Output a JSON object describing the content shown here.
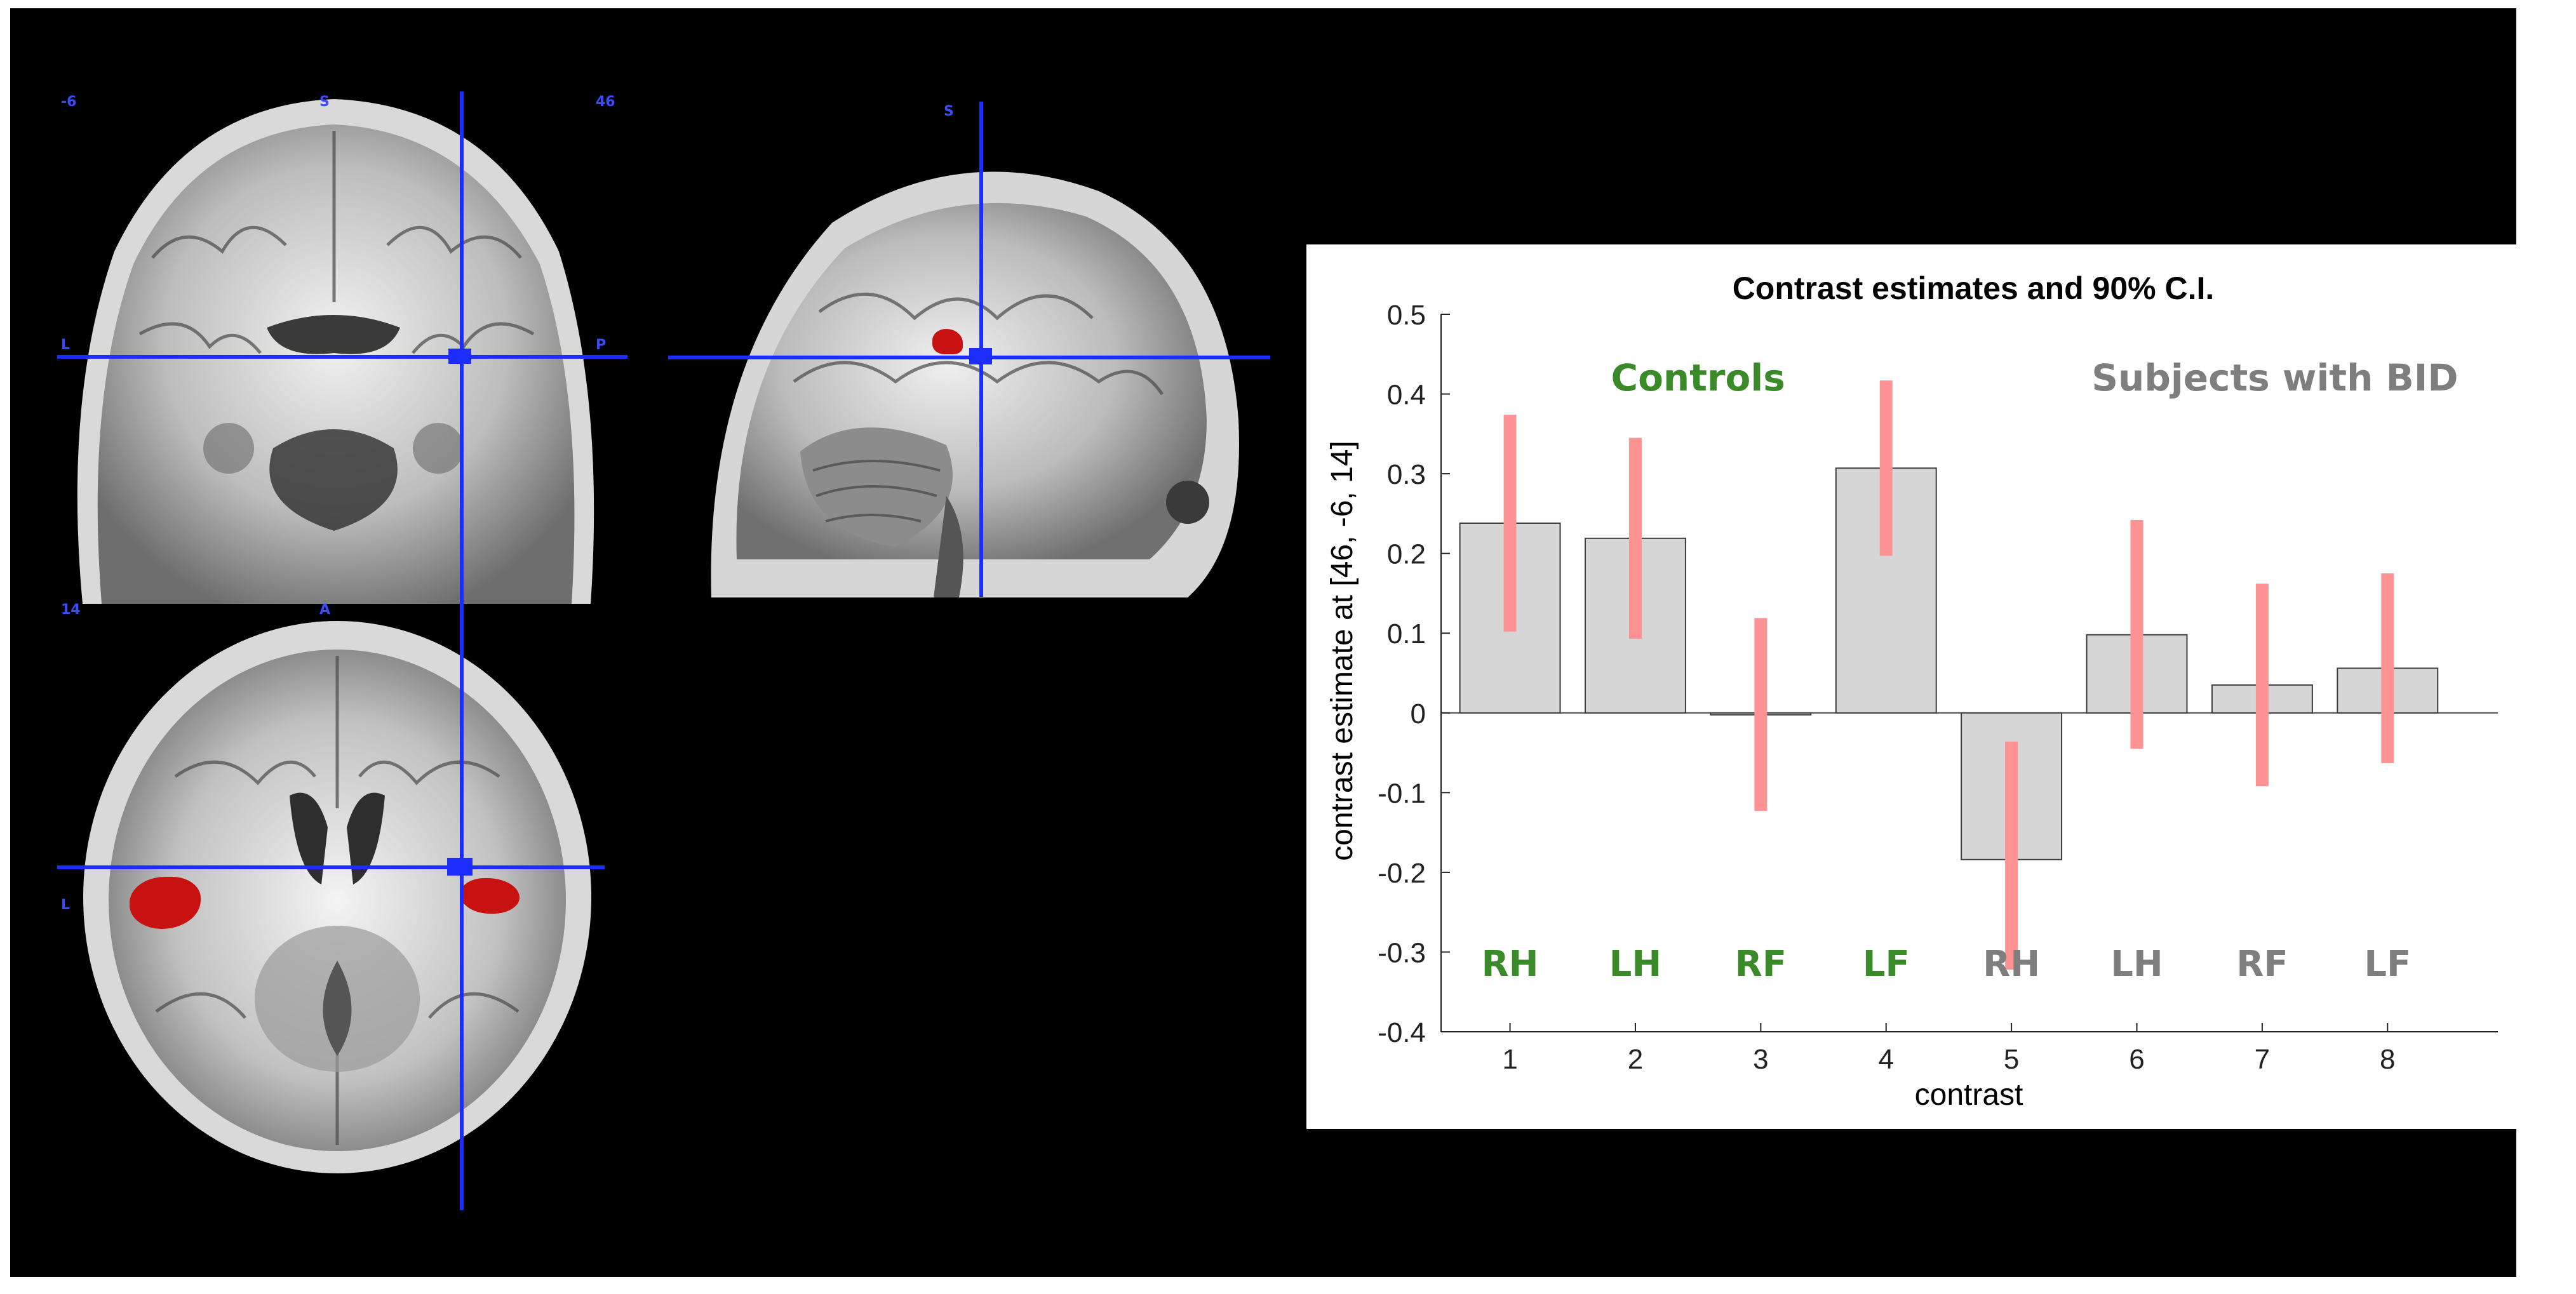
{
  "ortho_labels": {
    "coronal_left_num": "-6",
    "coronal_top": "S",
    "coronal_right_num": "46",
    "coronal_L": "L",
    "coronal_P": "P",
    "sagittal_top": "S",
    "axial_left_num": "14",
    "axial_top": "A",
    "axial_L": "L"
  },
  "colors": {
    "crosshair": "#1d2cff",
    "activation": "#c81212",
    "bar_fill": "#d6d6d6",
    "bar_stroke": "#3c3c3c",
    "ci": "#ff9393",
    "controls": "#3a8a2a",
    "bid": "#7e7e7e"
  },
  "chart_data": {
    "type": "bar",
    "title": "Contrast estimates and 90% C.I.",
    "xlabel": "contrast",
    "ylabel": "contrast estimate at [46, -6, 14]",
    "ylim": [
      -0.4,
      0.5
    ],
    "yticks": [
      "-0.4",
      "-0.3",
      "-0.2",
      "-0.1",
      "0",
      "0.1",
      "0.2",
      "0.3",
      "0.4",
      "0.5"
    ],
    "categories": [
      "1",
      "2",
      "3",
      "4",
      "5",
      "6",
      "7",
      "8"
    ],
    "values": [
      0.238,
      0.219,
      -0.002,
      0.307,
      -0.184,
      0.098,
      0.035,
      0.056
    ],
    "ci_low": [
      0.102,
      0.093,
      -0.123,
      0.197,
      -0.322,
      -0.045,
      -0.092,
      -0.063
    ],
    "ci_high": [
      0.374,
      0.345,
      0.119,
      0.417,
      -0.036,
      0.242,
      0.162,
      0.175
    ],
    "group_labels": [
      {
        "text": "Controls",
        "group": "controls"
      },
      {
        "text": "Subjects with BID",
        "group": "bid"
      }
    ],
    "condition_labels": [
      "RH",
      "LH",
      "RF",
      "LF",
      "RH",
      "LH",
      "RF",
      "LF"
    ],
    "condition_groups": [
      "controls",
      "controls",
      "controls",
      "controls",
      "bid",
      "bid",
      "bid",
      "bid"
    ],
    "grid": false,
    "legend": "none"
  }
}
